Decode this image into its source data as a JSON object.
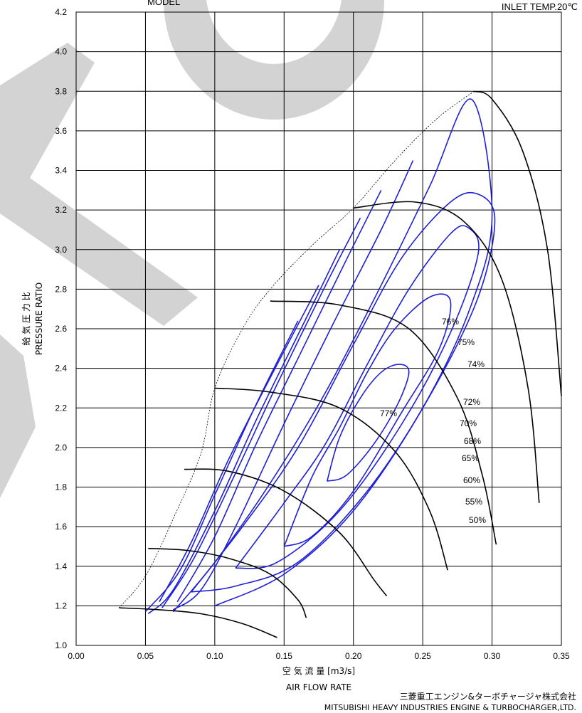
{
  "header": {
    "model_label": "MODEL",
    "inlet_temp": "INLET TEMP.20℃"
  },
  "footer": {
    "maker_jp": "三菱重工エンジン&ターボチャージャ株式会社",
    "maker_en": "MITSUBISHI  HEAVY  INDUSTRIES  ENGINE & TURBOCHARGER,LTD."
  },
  "colors": {
    "efficiency_islands": "#1f1fd8",
    "speed_lines": "#000000",
    "grid": "#000000",
    "watermark": "#d3d3d3"
  },
  "chart_data": {
    "type": "line",
    "subtype": "compressor-map",
    "xlabel_jp": "空  気  流  量  [m3/s]",
    "xlabel_en": "AIR   FLOW   RATE",
    "ylabel_jp": "給  気  圧  力  比",
    "ylabel_en": "PRESSURE   RATIO",
    "xlim": [
      0.0,
      0.35
    ],
    "ylim": [
      1.0,
      4.2
    ],
    "x_ticks": [
      "0.00",
      "0.05",
      "0.10",
      "0.15",
      "0.20",
      "0.25",
      "0.30",
      "0.35"
    ],
    "y_ticks": [
      "1.0",
      "1.2",
      "1.4",
      "1.6",
      "1.8",
      "2.0",
      "2.2",
      "2.4",
      "2.6",
      "2.8",
      "3.0",
      "3.2",
      "3.4",
      "3.6",
      "3.8",
      "4.0",
      "4.2"
    ],
    "grid": true,
    "surge_line": [
      [
        0.031,
        1.19
      ],
      [
        0.05,
        1.35
      ],
      [
        0.07,
        1.64
      ],
      [
        0.09,
        1.97
      ],
      [
        0.1,
        2.3
      ],
      [
        0.12,
        2.6
      ],
      [
        0.14,
        2.8
      ],
      [
        0.17,
        3.02
      ],
      [
        0.2,
        3.21
      ],
      [
        0.23,
        3.45
      ],
      [
        0.26,
        3.66
      ],
      [
        0.287,
        3.8
      ]
    ],
    "speed_lines": [
      [
        [
          0.031,
          1.19
        ],
        [
          0.06,
          1.18
        ],
        [
          0.09,
          1.16
        ],
        [
          0.12,
          1.11
        ],
        [
          0.145,
          1.04
        ]
      ],
      [
        [
          0.052,
          1.49
        ],
        [
          0.08,
          1.48
        ],
        [
          0.11,
          1.44
        ],
        [
          0.14,
          1.36
        ],
        [
          0.16,
          1.23
        ],
        [
          0.166,
          1.14
        ]
      ],
      [
        [
          0.078,
          1.89
        ],
        [
          0.11,
          1.88
        ],
        [
          0.15,
          1.78
        ],
        [
          0.19,
          1.57
        ],
        [
          0.215,
          1.33
        ],
        [
          0.224,
          1.25
        ]
      ],
      [
        [
          0.1,
          2.3
        ],
        [
          0.14,
          2.28
        ],
        [
          0.19,
          2.2
        ],
        [
          0.23,
          1.98
        ],
        [
          0.255,
          1.68
        ],
        [
          0.268,
          1.38
        ]
      ],
      [
        [
          0.14,
          2.74
        ],
        [
          0.19,
          2.72
        ],
        [
          0.24,
          2.6
        ],
        [
          0.275,
          2.25
        ],
        [
          0.293,
          1.86
        ],
        [
          0.303,
          1.51
        ]
      ],
      [
        [
          0.2,
          3.21
        ],
        [
          0.245,
          3.24
        ],
        [
          0.28,
          3.14
        ],
        [
          0.307,
          2.85
        ],
        [
          0.326,
          2.3
        ],
        [
          0.334,
          1.72
        ]
      ],
      [
        [
          0.287,
          3.8
        ],
        [
          0.3,
          3.76
        ],
        [
          0.322,
          3.5
        ],
        [
          0.34,
          3.0
        ],
        [
          0.35,
          2.26
        ]
      ]
    ],
    "efficiency_islands": [
      {
        "label": "77%",
        "points": [
          [
            0.181,
            1.83
          ],
          [
            0.19,
            2.05
          ],
          [
            0.205,
            2.25
          ],
          [
            0.22,
            2.38
          ],
          [
            0.233,
            2.42
          ],
          [
            0.24,
            2.38
          ],
          [
            0.232,
            2.22
          ],
          [
            0.215,
            2.02
          ],
          [
            0.195,
            1.86
          ],
          [
            0.181,
            1.83
          ]
        ]
      },
      {
        "label": "76%",
        "points": [
          [
            0.15,
            1.5
          ],
          [
            0.17,
            1.85
          ],
          [
            0.19,
            2.1
          ],
          [
            0.21,
            2.38
          ],
          [
            0.23,
            2.6
          ],
          [
            0.255,
            2.76
          ],
          [
            0.27,
            2.74
          ],
          [
            0.262,
            2.5
          ],
          [
            0.235,
            2.18
          ],
          [
            0.2,
            1.78
          ],
          [
            0.17,
            1.55
          ],
          [
            0.15,
            1.5
          ]
        ]
      },
      {
        "label": "75%",
        "points": [
          [
            0.115,
            1.39
          ],
          [
            0.15,
            1.72
          ],
          [
            0.18,
            2.02
          ],
          [
            0.21,
            2.42
          ],
          [
            0.24,
            2.8
          ],
          [
            0.27,
            3.08
          ],
          [
            0.283,
            3.11
          ],
          [
            0.29,
            2.98
          ],
          [
            0.27,
            2.58
          ],
          [
            0.235,
            2.12
          ],
          [
            0.19,
            1.68
          ],
          [
            0.145,
            1.42
          ],
          [
            0.115,
            1.39
          ]
        ]
      },
      {
        "label": "74%",
        "points": [
          [
            0.083,
            1.27
          ],
          [
            0.12,
            1.6
          ],
          [
            0.16,
            2.0
          ],
          [
            0.2,
            2.52
          ],
          [
            0.235,
            2.96
          ],
          [
            0.27,
            3.24
          ],
          [
            0.29,
            3.28
          ],
          [
            0.302,
            3.15
          ],
          [
            0.29,
            2.76
          ],
          [
            0.255,
            2.26
          ],
          [
            0.21,
            1.78
          ],
          [
            0.16,
            1.42
          ],
          [
            0.115,
            1.3
          ],
          [
            0.083,
            1.27
          ]
        ]
      },
      {
        "label": "72%",
        "points": [
          [
            0.07,
            1.17
          ],
          [
            0.1,
            1.42
          ],
          [
            0.14,
            1.82
          ],
          [
            0.18,
            2.28
          ],
          [
            0.22,
            2.82
          ],
          [
            0.255,
            3.32
          ],
          [
            0.285,
            3.76
          ],
          [
            0.3,
            3.18
          ],
          [
            0.285,
            2.72
          ],
          [
            0.25,
            2.2
          ],
          [
            0.2,
            1.68
          ],
          [
            0.15,
            1.36
          ],
          [
            0.1,
            1.2
          ]
        ]
      },
      {
        "label": "70%",
        "points": [
          [
            0.243,
            3.45
          ],
          [
            0.22,
            3.1
          ],
          [
            0.185,
            2.62
          ],
          [
            0.15,
            2.12
          ],
          [
            0.115,
            1.6
          ],
          [
            0.09,
            1.28
          ],
          [
            0.07,
            1.18
          ]
        ]
      },
      {
        "label": "68%",
        "points": [
          [
            0.22,
            3.3
          ],
          [
            0.195,
            2.95
          ],
          [
            0.16,
            2.45
          ],
          [
            0.13,
            2.02
          ],
          [
            0.1,
            1.55
          ],
          [
            0.073,
            1.22
          ]
        ]
      },
      {
        "label": "65%",
        "points": [
          [
            0.205,
            3.16
          ],
          [
            0.18,
            2.82
          ],
          [
            0.145,
            2.32
          ],
          [
            0.115,
            1.87
          ],
          [
            0.085,
            1.44
          ],
          [
            0.062,
            1.19
          ]
        ]
      },
      {
        "label": "60%",
        "points": [
          [
            0.19,
            3.0
          ],
          [
            0.165,
            2.64
          ],
          [
            0.13,
            2.14
          ],
          [
            0.1,
            1.68
          ],
          [
            0.07,
            1.28
          ],
          [
            0.052,
            1.16
          ]
        ]
      },
      {
        "label": "55%",
        "points": [
          [
            0.175,
            2.82
          ],
          [
            0.145,
            2.42
          ],
          [
            0.11,
            1.94
          ],
          [
            0.083,
            1.52
          ],
          [
            0.06,
            1.22
          ]
        ]
      },
      {
        "label": "50%",
        "points": [
          [
            0.16,
            2.64
          ],
          [
            0.13,
            2.22
          ],
          [
            0.1,
            1.76
          ],
          [
            0.075,
            1.38
          ],
          [
            0.05,
            1.17
          ]
        ]
      }
    ]
  }
}
